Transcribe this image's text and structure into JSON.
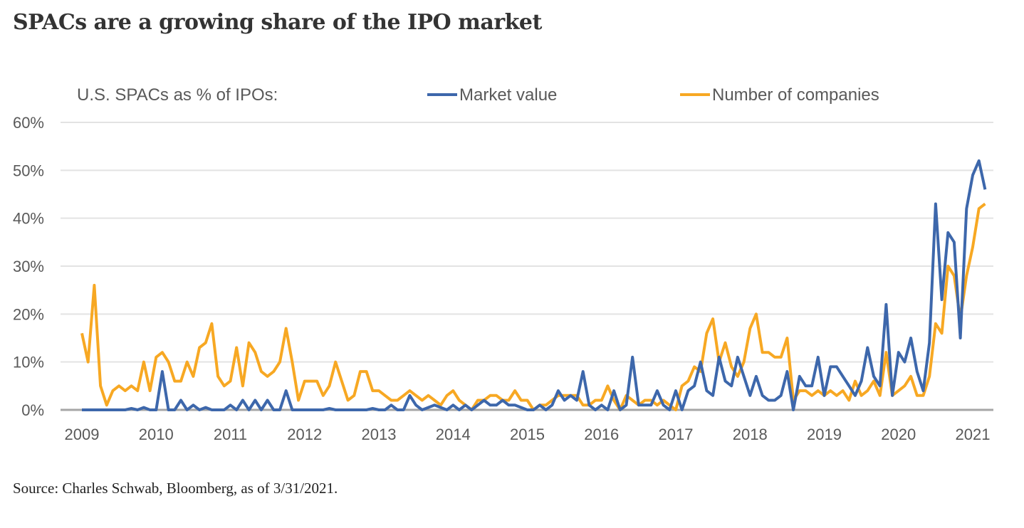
{
  "title": "SPACs are a growing share of the IPO market",
  "source": "Source: Charles Schwab, Bloomberg, as of 3/31/2021.",
  "chart_data": {
    "type": "line",
    "title": "",
    "legend_title": "U.S. SPACs as % of IPOs:",
    "legend_placement": "top",
    "xlabel": "",
    "ylabel": "",
    "ylim": [
      0,
      60
    ],
    "yticks": [
      "0%",
      "10%",
      "20%",
      "30%",
      "40%",
      "50%",
      "60%"
    ],
    "xticks": [
      "2009",
      "2010",
      "2011",
      "2012",
      "2013",
      "2014",
      "2015",
      "2016",
      "2017",
      "2018",
      "2019",
      "2020",
      "2021"
    ],
    "grid": "horizontal",
    "x_frequency": "monthly",
    "x_range": [
      "2009-01",
      "2021-03"
    ],
    "series": [
      {
        "name": "Market value",
        "color": "#3d67ab",
        "values": [
          0,
          0,
          0,
          0,
          0,
          0,
          0,
          0,
          0.3,
          0,
          0.5,
          0,
          0,
          8,
          0,
          0,
          2,
          0,
          1,
          0,
          0.5,
          0,
          0,
          0,
          1,
          0,
          2,
          0,
          2,
          0,
          2,
          0,
          0,
          4,
          0,
          0,
          0,
          0,
          0,
          0,
          0.3,
          0,
          0,
          0,
          0,
          0,
          0,
          0.3,
          0,
          0,
          1,
          0,
          0,
          3,
          1,
          0,
          0.5,
          1,
          0.5,
          0,
          1,
          0,
          1,
          0,
          1,
          2,
          1,
          1,
          2,
          1,
          1,
          0.5,
          0,
          0,
          1,
          0,
          1,
          4,
          2,
          3,
          2,
          8,
          1,
          0,
          1,
          0,
          4,
          0,
          1,
          11,
          1,
          1,
          1,
          4,
          1,
          0,
          4,
          0,
          4,
          5,
          10,
          4,
          3,
          11,
          6,
          5,
          11,
          7,
          3,
          7,
          3,
          2,
          2,
          3,
          8,
          0,
          7,
          5,
          5,
          11,
          3,
          9,
          9,
          7,
          5,
          3,
          6,
          13,
          7,
          5,
          22,
          3,
          12,
          10,
          15,
          8,
          4,
          14,
          43,
          23,
          37,
          35,
          15,
          42,
          49,
          52,
          46
        ]
      },
      {
        "name": "Number of companies",
        "color": "#f7a823",
        "values": [
          16,
          10,
          26,
          5,
          1,
          4,
          5,
          4,
          5,
          4,
          10,
          4,
          11,
          12,
          10,
          6,
          6,
          10,
          7,
          13,
          14,
          18,
          7,
          5,
          6,
          13,
          5,
          14,
          12,
          8,
          7,
          8,
          10,
          17,
          10,
          2,
          6,
          6,
          6,
          3,
          5,
          10,
          6,
          2,
          3,
          8,
          8,
          4,
          4,
          3,
          2,
          2,
          3,
          4,
          3,
          2,
          3,
          2,
          1,
          3,
          4,
          2,
          1,
          0,
          2,
          2,
          3,
          3,
          2,
          2,
          4,
          2,
          2,
          0,
          1,
          1,
          2,
          3,
          3,
          3,
          3,
          1,
          1,
          2,
          2,
          5,
          2,
          0,
          3,
          2,
          1,
          2,
          2,
          1,
          2,
          1,
          0,
          5,
          6,
          9,
          8,
          16,
          19,
          10,
          14,
          9,
          7,
          10,
          17,
          20,
          12,
          12,
          11,
          11,
          15,
          2,
          4,
          4,
          3,
          4,
          3,
          4,
          3,
          4,
          2,
          6,
          3,
          4,
          6,
          3,
          12,
          3,
          4,
          5,
          7,
          3,
          3,
          7,
          18,
          16,
          30,
          28,
          19,
          28,
          34,
          42,
          43
        ]
      }
    ]
  }
}
